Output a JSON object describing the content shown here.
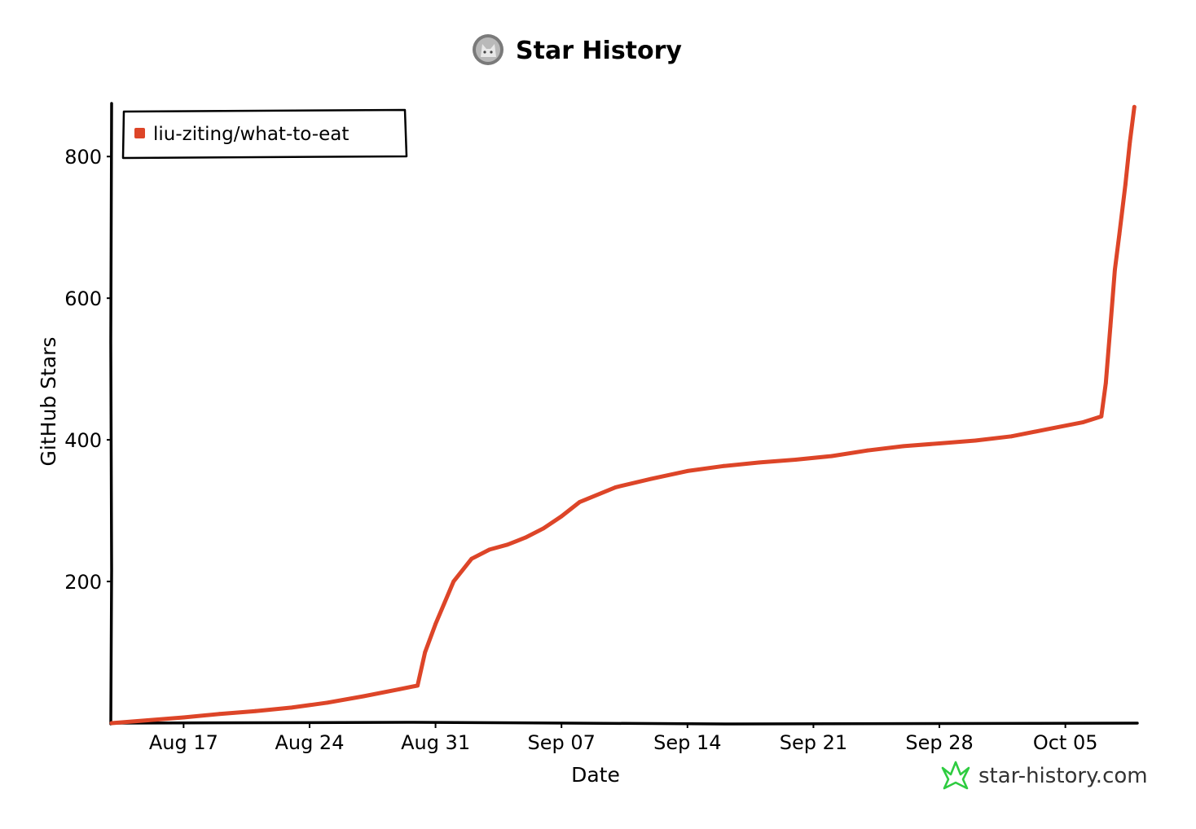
{
  "header": {
    "title": "Star History",
    "avatar_icon": "cat-avatar-icon"
  },
  "legend": {
    "placement": "top-left"
  },
  "brand": {
    "text": "star-history.com",
    "icon": "star-history-logo-icon",
    "color": "#2ecc40"
  },
  "chart_data": {
    "type": "line",
    "title": "Star History",
    "xlabel": "Date",
    "ylabel": "GitHub Stars",
    "x_ticks": [
      "Aug 17",
      "Aug 24",
      "Aug 31",
      "Sep 07",
      "Sep 14",
      "Sep 21",
      "Sep 28",
      "Oct 05"
    ],
    "y_ticks": [
      200,
      400,
      600,
      800
    ],
    "xlim": [
      "2023-08-13",
      "2023-10-09"
    ],
    "ylim": [
      0,
      875
    ],
    "grid": false,
    "series": [
      {
        "name": "liu-ziting/what-to-eat",
        "color": "#dd4528",
        "points": [
          {
            "x": "2023-08-13",
            "y": 0
          },
          {
            "x": "2023-08-15",
            "y": 4
          },
          {
            "x": "2023-08-17",
            "y": 8
          },
          {
            "x": "2023-08-19",
            "y": 13
          },
          {
            "x": "2023-08-21",
            "y": 17
          },
          {
            "x": "2023-08-23",
            "y": 22
          },
          {
            "x": "2023-08-25",
            "y": 29
          },
          {
            "x": "2023-08-27",
            "y": 38
          },
          {
            "x": "2023-08-29",
            "y": 48
          },
          {
            "x": "2023-08-30",
            "y": 53
          },
          {
            "x": "2023-08-30T10:00",
            "y": 100
          },
          {
            "x": "2023-08-31",
            "y": 140
          },
          {
            "x": "2023-09-01",
            "y": 200
          },
          {
            "x": "2023-09-02",
            "y": 232
          },
          {
            "x": "2023-09-03",
            "y": 245
          },
          {
            "x": "2023-09-04",
            "y": 252
          },
          {
            "x": "2023-09-05",
            "y": 262
          },
          {
            "x": "2023-09-06",
            "y": 275
          },
          {
            "x": "2023-09-07",
            "y": 292
          },
          {
            "x": "2023-09-08",
            "y": 312
          },
          {
            "x": "2023-09-10",
            "y": 333
          },
          {
            "x": "2023-09-12",
            "y": 345
          },
          {
            "x": "2023-09-14",
            "y": 356
          },
          {
            "x": "2023-09-16",
            "y": 363
          },
          {
            "x": "2023-09-18",
            "y": 368
          },
          {
            "x": "2023-09-20",
            "y": 372
          },
          {
            "x": "2023-09-22",
            "y": 377
          },
          {
            "x": "2023-09-24",
            "y": 385
          },
          {
            "x": "2023-09-26",
            "y": 391
          },
          {
            "x": "2023-09-28",
            "y": 395
          },
          {
            "x": "2023-09-30",
            "y": 399
          },
          {
            "x": "2023-10-02",
            "y": 405
          },
          {
            "x": "2023-10-04",
            "y": 415
          },
          {
            "x": "2023-10-06",
            "y": 425
          },
          {
            "x": "2023-10-07",
            "y": 433
          },
          {
            "x": "2023-10-07T06:00",
            "y": 480
          },
          {
            "x": "2023-10-07T12:00",
            "y": 560
          },
          {
            "x": "2023-10-07T18:00",
            "y": 640
          },
          {
            "x": "2023-10-08",
            "y": 690
          },
          {
            "x": "2023-10-08T08:00",
            "y": 760
          },
          {
            "x": "2023-10-08T14:00",
            "y": 820
          },
          {
            "x": "2023-10-08T20:00",
            "y": 870
          }
        ]
      }
    ]
  }
}
